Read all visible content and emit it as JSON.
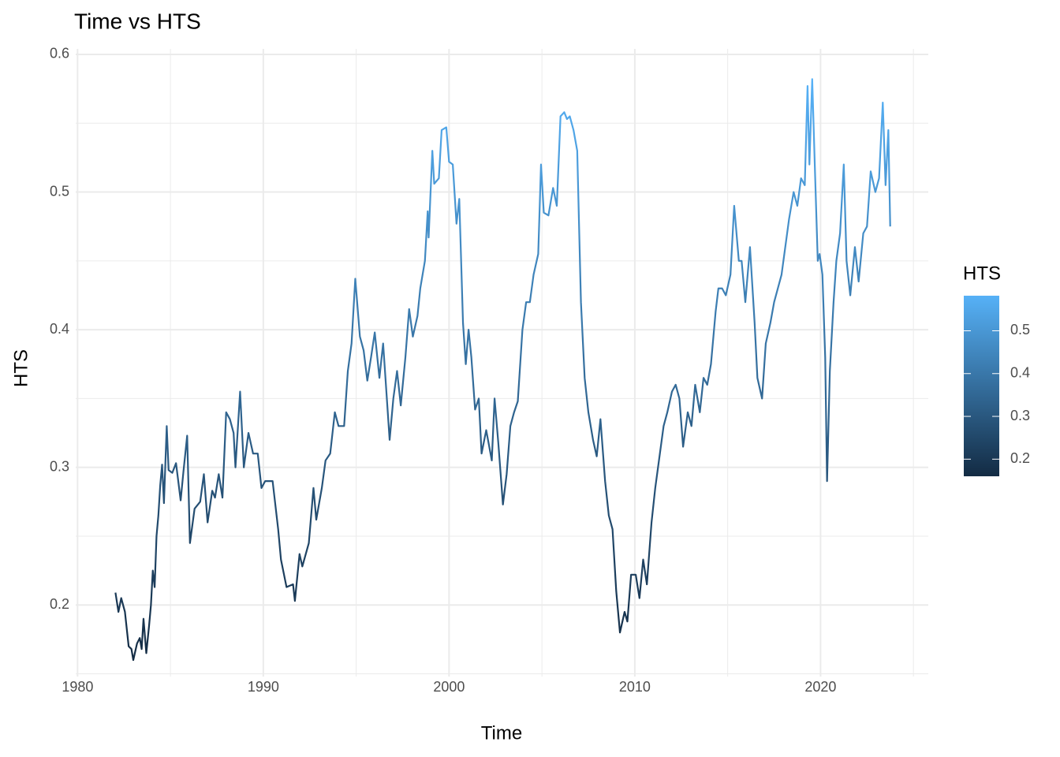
{
  "chart_data": {
    "type": "line",
    "title": "Time vs HTS",
    "x_label": "Time",
    "y_label": "HTS",
    "x": [
      1982.04,
      1982.2,
      1982.35,
      1982.55,
      1982.75,
      1982.9,
      1983.0,
      1983.2,
      1983.35,
      1983.45,
      1983.55,
      1983.7,
      1983.85,
      1983.95,
      1984.05,
      1984.15,
      1984.25,
      1984.35,
      1984.45,
      1984.55,
      1984.65,
      1984.8,
      1984.9,
      1985.1,
      1985.3,
      1985.55,
      1985.7,
      1985.9,
      1986.05,
      1986.3,
      1986.6,
      1986.8,
      1987.0,
      1987.25,
      1987.4,
      1987.6,
      1987.8,
      1988.0,
      1988.2,
      1988.4,
      1988.5,
      1988.75,
      1988.95,
      1989.2,
      1989.45,
      1989.7,
      1989.9,
      1990.1,
      1990.5,
      1990.8,
      1990.95,
      1991.25,
      1991.6,
      1991.7,
      1991.95,
      1992.1,
      1992.45,
      1992.7,
      1992.85,
      1993.15,
      1993.35,
      1993.6,
      1993.85,
      1994.05,
      1994.35,
      1994.55,
      1994.75,
      1994.95,
      1995.2,
      1995.4,
      1995.6,
      1995.8,
      1996.0,
      1996.25,
      1996.45,
      1996.8,
      1997.0,
      1997.2,
      1997.4,
      1997.65,
      1997.85,
      1998.05,
      1998.3,
      1998.45,
      1998.7,
      1998.85,
      1998.9,
      1999.1,
      1999.2,
      1999.45,
      1999.6,
      1999.85,
      2000.0,
      2000.2,
      2000.4,
      2000.55,
      2000.75,
      2000.9,
      2001.05,
      2001.2,
      2001.4,
      2001.6,
      2001.75,
      2002.0,
      2002.3,
      2002.45,
      2002.65,
      2002.9,
      2003.1,
      2003.3,
      2003.5,
      2003.7,
      2003.95,
      2004.15,
      2004.35,
      2004.55,
      2004.8,
      2004.95,
      2005.1,
      2005.35,
      2005.6,
      2005.8,
      2006.0,
      2006.2,
      2006.35,
      2006.5,
      2006.7,
      2006.9,
      2007.1,
      2007.3,
      2007.5,
      2007.75,
      2007.95,
      2008.15,
      2008.4,
      2008.6,
      2008.8,
      2009.0,
      2009.2,
      2009.45,
      2009.6,
      2009.8,
      2010.05,
      2010.25,
      2010.45,
      2010.65,
      2010.9,
      2011.1,
      2011.3,
      2011.55,
      2011.75,
      2012.0,
      2012.2,
      2012.4,
      2012.6,
      2012.85,
      2013.05,
      2013.25,
      2013.5,
      2013.7,
      2013.9,
      2014.1,
      2014.35,
      2014.5,
      2014.7,
      2014.9,
      2015.15,
      2015.35,
      2015.6,
      2015.75,
      2015.95,
      2016.2,
      2016.45,
      2016.6,
      2016.85,
      2017.05,
      2017.3,
      2017.5,
      2017.7,
      2017.9,
      2018.1,
      2018.3,
      2018.55,
      2018.75,
      2018.95,
      2019.15,
      2019.3,
      2019.4,
      2019.55,
      2019.7,
      2019.85,
      2019.95,
      2020.1,
      2020.25,
      2020.35,
      2020.5,
      2020.7,
      2020.85,
      2021.05,
      2021.25,
      2021.4,
      2021.6,
      2021.85,
      2022.05,
      2022.3,
      2022.5,
      2022.7,
      2022.95,
      2023.15,
      2023.35,
      2023.5,
      2023.65,
      2023.75
    ],
    "series": [
      {
        "name": "HTS",
        "values": [
          0.209,
          0.195,
          0.205,
          0.195,
          0.17,
          0.168,
          0.16,
          0.172,
          0.176,
          0.168,
          0.19,
          0.165,
          0.185,
          0.2,
          0.225,
          0.213,
          0.25,
          0.265,
          0.287,
          0.302,
          0.274,
          0.33,
          0.298,
          0.296,
          0.303,
          0.276,
          0.297,
          0.323,
          0.245,
          0.27,
          0.275,
          0.295,
          0.26,
          0.283,
          0.278,
          0.295,
          0.278,
          0.34,
          0.335,
          0.325,
          0.3,
          0.355,
          0.3,
          0.325,
          0.31,
          0.31,
          0.285,
          0.29,
          0.29,
          0.255,
          0.233,
          0.213,
          0.215,
          0.203,
          0.237,
          0.228,
          0.245,
          0.285,
          0.262,
          0.285,
          0.305,
          0.31,
          0.34,
          0.33,
          0.33,
          0.37,
          0.39,
          0.437,
          0.395,
          0.385,
          0.363,
          0.38,
          0.398,
          0.365,
          0.39,
          0.32,
          0.35,
          0.37,
          0.345,
          0.38,
          0.415,
          0.395,
          0.41,
          0.43,
          0.45,
          0.486,
          0.467,
          0.53,
          0.506,
          0.51,
          0.545,
          0.547,
          0.522,
          0.52,
          0.477,
          0.495,
          0.405,
          0.375,
          0.4,
          0.38,
          0.342,
          0.35,
          0.31,
          0.327,
          0.305,
          0.35,
          0.318,
          0.273,
          0.295,
          0.33,
          0.34,
          0.348,
          0.4,
          0.42,
          0.42,
          0.44,
          0.455,
          0.52,
          0.485,
          0.483,
          0.503,
          0.49,
          0.555,
          0.558,
          0.553,
          0.555,
          0.545,
          0.53,
          0.42,
          0.365,
          0.34,
          0.32,
          0.308,
          0.335,
          0.29,
          0.265,
          0.255,
          0.21,
          0.18,
          0.195,
          0.188,
          0.222,
          0.222,
          0.205,
          0.233,
          0.215,
          0.26,
          0.285,
          0.305,
          0.33,
          0.34,
          0.355,
          0.36,
          0.35,
          0.315,
          0.34,
          0.33,
          0.36,
          0.34,
          0.365,
          0.36,
          0.375,
          0.413,
          0.43,
          0.43,
          0.425,
          0.44,
          0.49,
          0.45,
          0.45,
          0.42,
          0.46,
          0.405,
          0.365,
          0.35,
          0.39,
          0.405,
          0.42,
          0.43,
          0.44,
          0.46,
          0.48,
          0.5,
          0.49,
          0.51,
          0.505,
          0.577,
          0.52,
          0.582,
          0.515,
          0.45,
          0.455,
          0.44,
          0.38,
          0.29,
          0.37,
          0.42,
          0.45,
          0.47,
          0.52,
          0.45,
          0.425,
          0.46,
          0.435,
          0.47,
          0.475,
          0.515,
          0.5,
          0.51,
          0.565,
          0.505,
          0.545,
          0.475
        ]
      }
    ],
    "color_scale": {
      "low": "#132B43",
      "high": "#56B1F7"
    },
    "legend_ticks": [
      0.2,
      0.3,
      0.4,
      0.5
    ],
    "legend_position": "right",
    "xlim": [
      1979.9,
      2025.8
    ],
    "xticks": [
      1980,
      1990,
      2000,
      2010,
      2020
    ],
    "ylim": [
      0.148,
      0.604
    ],
    "yticks": [
      0.2,
      0.3,
      0.4,
      0.5,
      0.6
    ],
    "grid": true
  }
}
